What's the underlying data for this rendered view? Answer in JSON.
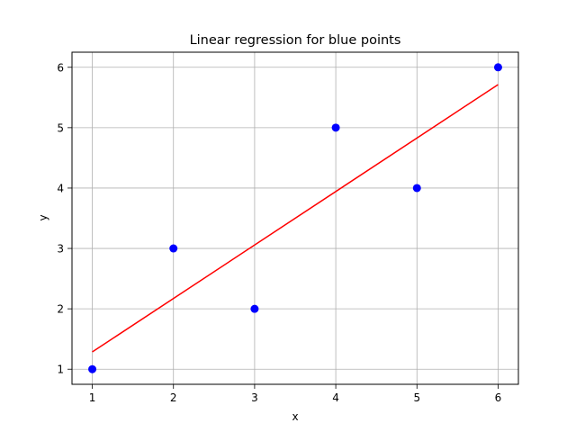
{
  "chart_data": {
    "type": "scatter",
    "title": "Linear regression for blue points",
    "xlabel": "x",
    "ylabel": "y",
    "xlim": [
      0.75,
      6.25
    ],
    "ylim": [
      0.75,
      6.25
    ],
    "x_ticks": [
      1,
      2,
      3,
      4,
      5,
      6
    ],
    "y_ticks": [
      1,
      2,
      3,
      4,
      5,
      6
    ],
    "grid": true,
    "series": [
      {
        "type": "scatter",
        "color": "#0000ff",
        "points": [
          {
            "x": 1,
            "y": 1
          },
          {
            "x": 2,
            "y": 3
          },
          {
            "x": 3,
            "y": 2
          },
          {
            "x": 4,
            "y": 5
          },
          {
            "x": 5,
            "y": 4
          },
          {
            "x": 6,
            "y": 6
          }
        ]
      },
      {
        "type": "line",
        "color": "#ff0000",
        "points": [
          {
            "x": 1,
            "y": 1.286
          },
          {
            "x": 6,
            "y": 5.714
          }
        ]
      }
    ]
  }
}
